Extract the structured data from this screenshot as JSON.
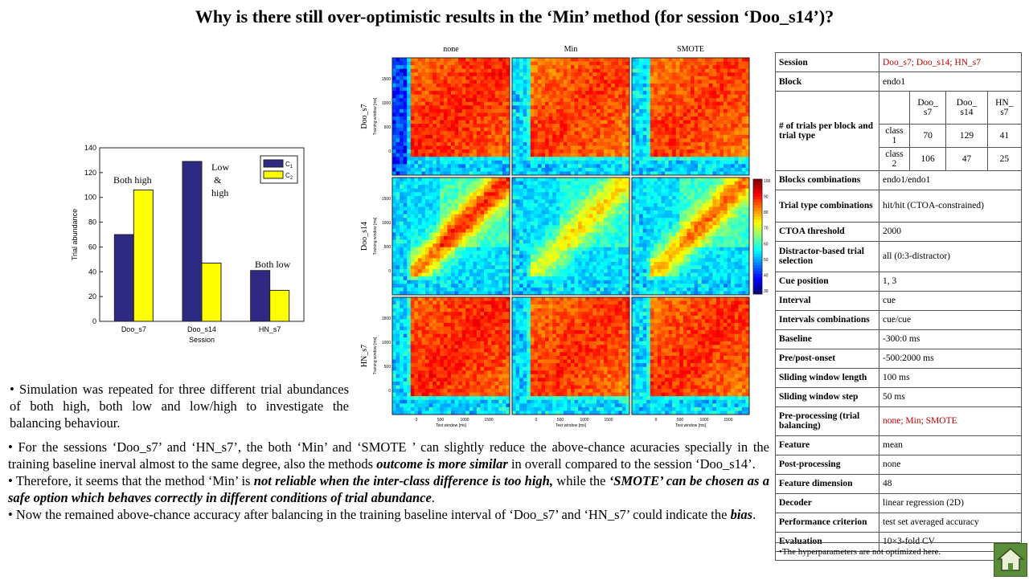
{
  "title": "Why is there still over-optimistic results in the ‘Min’ method (for session ‘Doo_s14’)?",
  "chart_data": [
    {
      "type": "bar",
      "categories": [
        "Doo_s7",
        "Doo_s14",
        "HN_s7"
      ],
      "series": [
        {
          "name": "C1",
          "values": [
            70,
            129,
            41
          ],
          "color": "#2e2a84"
        },
        {
          "name": "C2",
          "values": [
            106,
            47,
            25
          ],
          "color": "#ffff00"
        }
      ],
      "xlabel": "Session",
      "ylabel": "Trial abundance",
      "ylim": [
        0,
        140
      ],
      "yticks": [
        0,
        20,
        40,
        60,
        80,
        100,
        120,
        140
      ],
      "legend": "top-right",
      "legend_labels": {
        "c": "C",
        "sub1": "1",
        "sub2": "2"
      },
      "annotations": {
        "both_high": "Both high",
        "low": "Low",
        "amp": "&",
        "high": "high",
        "both_low": "Both low"
      }
    },
    {
      "type": "heatmap",
      "columns": [
        "none",
        "Min",
        "SMOTE"
      ],
      "rows": [
        "Doo_s7",
        "Doo_s14",
        "HN_s7"
      ],
      "xlabel": "Test window [ms]",
      "ylabel": "Training window [ms]",
      "xticks": [
        "0",
        "500",
        "1000",
        "1500"
      ],
      "yticks": [
        "1500",
        "1000",
        "500",
        "0"
      ],
      "colorbar_ticks": [
        "100",
        "90",
        "80",
        "70",
        "60",
        "50",
        "40",
        "30"
      ]
    }
  ],
  "sim_text": "Simulation was repeated for three different trial abundances of both high, both low and low/high to investigate the balancing behaviour.",
  "bullets": {
    "b1_pre": "For the sessions ‘Doo_s7’ and ‘HN_s7’, the both ‘Min’ and ‘SMOTE ’ can slightly reduce the above-chance acuracies specially in the training baseline inerval almost to the same degree, also the methods ",
    "b1_em": "outcome is more similar",
    "b1_post": " in overall compared to the session ‘Doo_s14’.",
    "b2_pre": "Therefore, it seems that the method ‘Min’ is ",
    "b2_em1": "not reliable when the inter-class difference is too high,",
    "b2_mid": " while the ",
    "b2_em2": "‘SMOTE’ can be chosen as a safe option which behaves correctly in different conditions of trial abundance",
    "b2_post": ".",
    "b3_pre": "Now the remained above-chance accuracy after balancing in the training baseline interval of ‘Doo_s7’ and ‘HN_s7’ could indicate the ",
    "b3_em": "bias",
    "b3_post": "."
  },
  "table": {
    "session_k": "Session",
    "session_v": "Doo_s7; Doo_s14; HN_s7",
    "block_k": "Block",
    "block_v": "endo1",
    "trials_k": "# of trials per block and trial type",
    "trials_cols": [
      "Doo_ s7",
      "Doo_ s14",
      "HN_ s7"
    ],
    "class1": "class 1",
    "class1_vals": [
      "70",
      "129",
      "41"
    ],
    "class2": "class 2",
    "class2_vals": [
      "106",
      "47",
      "25"
    ],
    "blockcomb_k": "Blocks combinations",
    "blockcomb_v": "endo1/endo1",
    "ttcomb_k": "Trial type combinations",
    "ttcomb_v": "hit/hit (CTOA-constrained)",
    "ctoa_k": "CTOA threshold",
    "ctoa_v": "2000",
    "distr_k": "Distractor-based trial selection",
    "distr_v": "all (0:3-distractor)",
    "cue_k": "Cue position",
    "cue_v": "1, 3",
    "interval_k": "Interval",
    "interval_v": "cue",
    "intcomb_k": "Intervals combinations",
    "intcomb_v": "cue/cue",
    "baseline_k": "Baseline",
    "baseline_v": "-300:0 ms",
    "prepost_k": "Pre/post-onset",
    "prepost_v": "-500:2000 ms",
    "swl_k": "Sliding window length",
    "swl_v": "100 ms",
    "sws_k": "Sliding window step",
    "sws_v": "50 ms",
    "prep_k": "Pre-processing (trial balancing)",
    "prep_v": "none; Min; SMOTE",
    "feature_k": "Feature",
    "feature_v": "mean",
    "postp_k": "Post-processing",
    "postp_v": "none",
    "fdim_k": "Feature dimension",
    "fdim_v": "48",
    "decoder_k": "Decoder",
    "decoder_v": "linear regression (2D)",
    "perf_k": "Performance criterion",
    "perf_v": "test set averaged accuracy",
    "eval_k": "Evaluation",
    "eval_v": "10×3-fold CV"
  },
  "note": "•The hyperparameters are not optimized here."
}
